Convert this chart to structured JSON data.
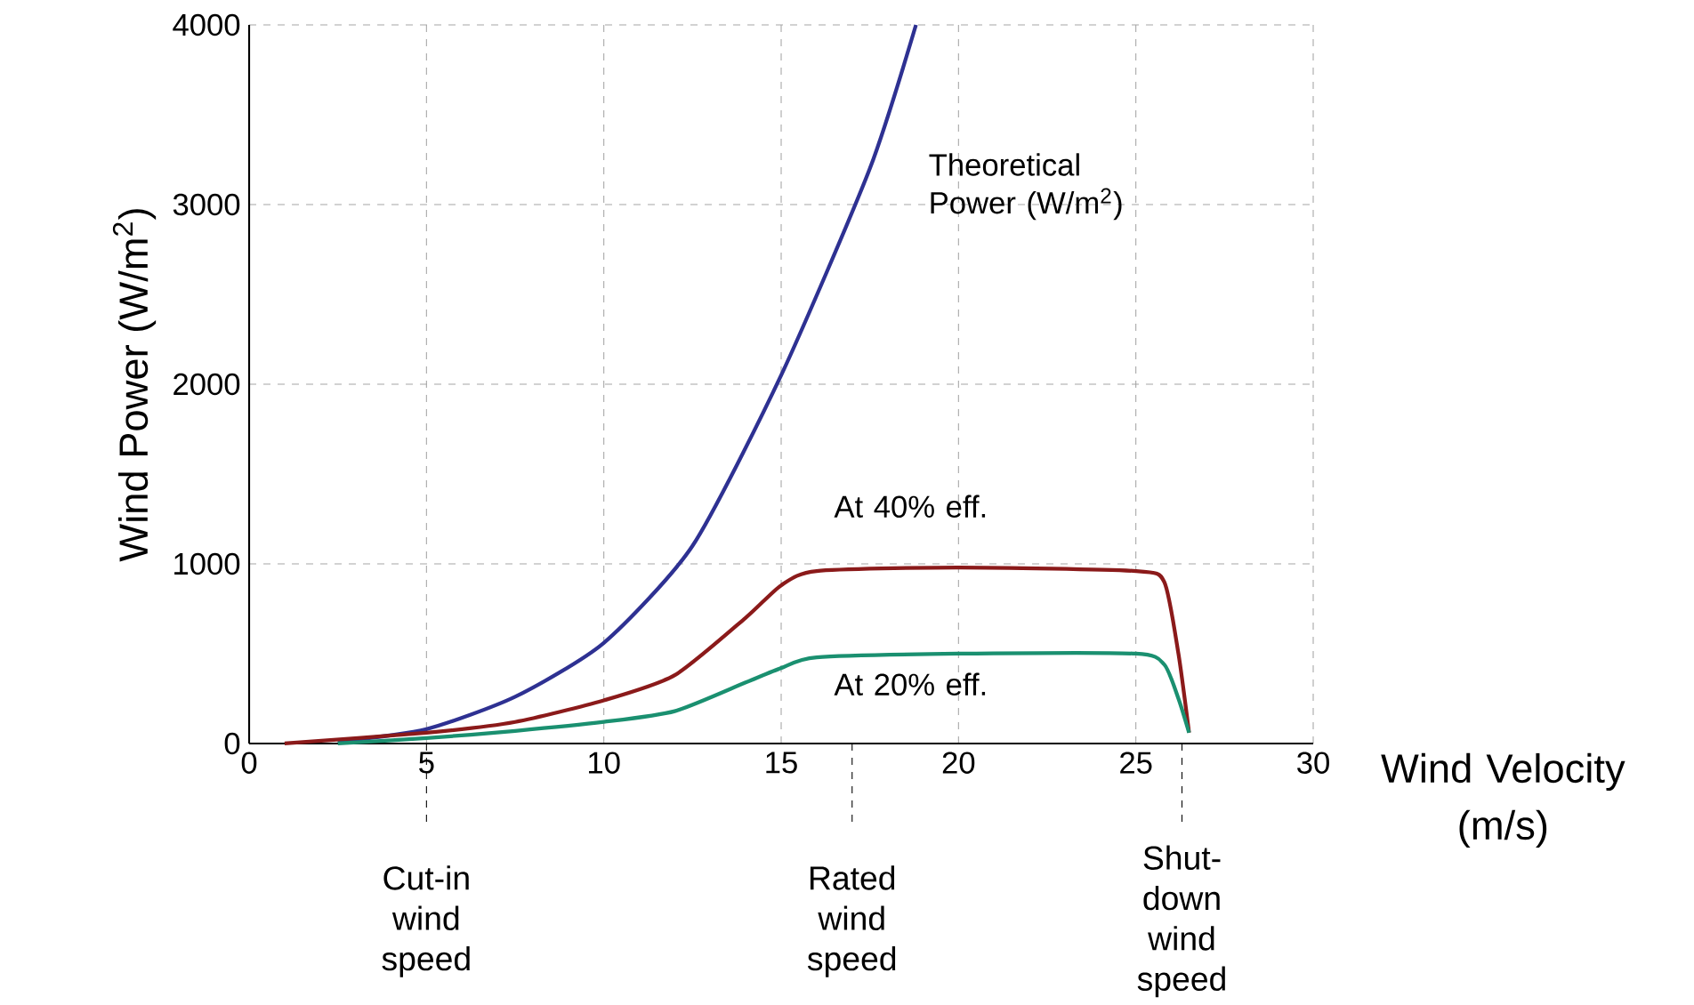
{
  "chart_data": {
    "type": "line",
    "xlabel": "Wind Velocity (m/s)",
    "ylabel": "Wind Power (W/m$^{2}$)",
    "xlim": [
      0,
      30
    ],
    "xticks": [
      0,
      5,
      10,
      15,
      20,
      25,
      30
    ],
    "ylim": [
      0,
      4000
    ],
    "yticks": [
      0,
      1000,
      2000,
      3000,
      4000
    ],
    "grid": true,
    "marker": "none",
    "line_style": "solid",
    "series": [
      {
        "name": "Theoretical Power (W/m$^{2}$)",
        "color": "#2e3192",
        "x": [
          2.5,
          5,
          7.5,
          10,
          12.5,
          15,
          17.5,
          18.8
        ],
        "values": [
          10,
          80,
          260,
          560,
          1100,
          2050,
          3200,
          4000
        ]
      },
      {
        "name": "At 40% eff.",
        "color": "#8b1a1a",
        "x": [
          1,
          5,
          7.5,
          10,
          12,
          14,
          15,
          16,
          20,
          25,
          25.8,
          26.2,
          26.5
        ],
        "values": [
          0,
          60,
          120,
          240,
          380,
          700,
          880,
          960,
          980,
          960,
          900,
          500,
          60
        ]
      },
      {
        "name": "At 20% eff.",
        "color": "#1a9070",
        "x": [
          2.5,
          5,
          7.5,
          10,
          12,
          14,
          15,
          16,
          20,
          25,
          25.8,
          26.2,
          26.5
        ],
        "values": [
          0,
          30,
          70,
          120,
          180,
          340,
          420,
          480,
          500,
          500,
          440,
          250,
          60
        ]
      }
    ],
    "ref_lines": [
      {
        "axis": "x",
        "value": 5,
        "label": "Cut-in wind speed",
        "line_style": "dashed"
      },
      {
        "axis": "x",
        "value": 17,
        "label": "Rated wind speed",
        "line_style": "dashed"
      },
      {
        "axis": "x",
        "value": 26.3,
        "label": "Shut-down wind speed",
        "line_style": "dashed"
      }
    ]
  }
}
